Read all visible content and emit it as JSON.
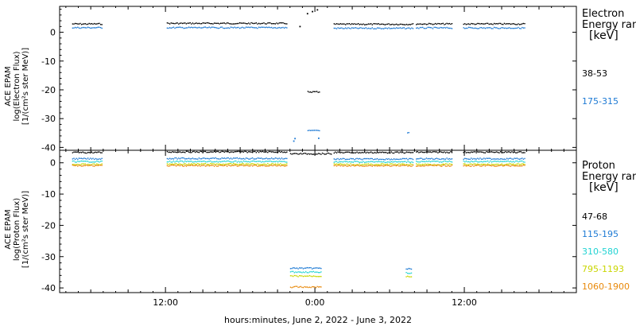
{
  "chart_data": [
    {
      "type": "scatter",
      "ylabel": [
        "ACE EPAM",
        "log(Electron Flux)",
        "[1/(cm²s ster MeV)]"
      ],
      "yticks": [
        0,
        -10,
        -20,
        -30,
        -40
      ],
      "ylim": [
        -41,
        9
      ],
      "legend_title": [
        "Electron",
        "Energy ran",
        "[keV]"
      ],
      "series": [
        {
          "name": "38-53",
          "color": "#000000",
          "segments": [
            {
              "x": [
                -19.5,
                -17.1
              ],
              "y": 2.8
            },
            {
              "x": [
                -11.9,
                -2.2
              ],
              "y": 3.0
            },
            {
              "x": [
                1.5,
                7.9
              ],
              "y": 2.7
            },
            {
              "x": [
                8.1,
                11.0
              ],
              "y": 2.8
            },
            {
              "x": [
                11.9,
                16.9
              ],
              "y": 2.8
            },
            {
              "x": [
                -0.6,
                0.4
              ],
              "y": -20.8
            }
          ],
          "points": [
            {
              "x": -0.6,
              "y": 6.5
            },
            {
              "x": -0.2,
              "y": 7.2
            },
            {
              "x": 0.2,
              "y": 7.8
            },
            {
              "x": -1.2,
              "y": 2.0
            }
          ]
        },
        {
          "name": "175-315",
          "color": "#1e7ad4",
          "segments": [
            {
              "x": [
                -19.5,
                -17.1
              ],
              "y": 1.5
            },
            {
              "x": [
                -11.9,
                -2.2
              ],
              "y": 1.5
            },
            {
              "x": [
                1.5,
                7.9
              ],
              "y": 1.3
            },
            {
              "x": [
                8.1,
                11.0
              ],
              "y": 1.4
            },
            {
              "x": [
                11.9,
                16.9
              ],
              "y": 1.4
            },
            {
              "x": [
                -0.6,
                0.4
              ],
              "y": -34.3
            },
            {
              "x": [
                7.4,
                7.6
              ],
              "y": -35.1
            }
          ],
          "points": [
            {
              "x": -1.7,
              "y": -37.8
            },
            {
              "x": -1.6,
              "y": -36.9
            },
            {
              "x": 0.3,
              "y": -36.8
            }
          ]
        }
      ]
    },
    {
      "type": "scatter",
      "ylabel": [
        "ACE EPAM",
        "log(Proton Flux)",
        "[1/(cm²s ster MeV)]"
      ],
      "yticks": [
        0,
        -10,
        -20,
        -30,
        -40
      ],
      "ylim": [
        -41.5,
        4
      ],
      "legend_title": [
        "Proton",
        "Energy ran",
        "[keV]"
      ],
      "series": [
        {
          "name": "47-68",
          "color": "#000000",
          "segments": [
            {
              "x": [
                -19.5,
                -17.1
              ],
              "y": 3.2
            },
            {
              "x": [
                -11.9,
                -2.2
              ],
              "y": 3.4
            },
            {
              "x": [
                1.5,
                7.9
              ],
              "y": 3.2
            },
            {
              "x": [
                8.1,
                11.0
              ],
              "y": 3.3
            },
            {
              "x": [
                11.9,
                16.9
              ],
              "y": 3.3
            },
            {
              "x": [
                -2.0,
                1.3
              ],
              "y": 2.8
            }
          ],
          "points": []
        },
        {
          "name": "115-195",
          "color": "#1e7ad4",
          "segments": [
            {
              "x": [
                -19.5,
                -17.1
              ],
              "y": 1.2
            },
            {
              "x": [
                -11.9,
                -2.2
              ],
              "y": 1.3
            },
            {
              "x": [
                1.5,
                7.9
              ],
              "y": 1.1
            },
            {
              "x": [
                8.1,
                11.0
              ],
              "y": 1.2
            },
            {
              "x": [
                11.9,
                16.9
              ],
              "y": 1.2
            },
            {
              "x": [
                -2.0,
                0.5
              ],
              "y": -33.8
            },
            {
              "x": [
                7.3,
                7.8
              ],
              "y": -34.0
            }
          ],
          "points": []
        },
        {
          "name": "310-580",
          "color": "#22d3d3",
          "segments": [
            {
              "x": [
                -19.5,
                -17.1
              ],
              "y": 0.3
            },
            {
              "x": [
                -11.9,
                -2.2
              ],
              "y": 0.3
            },
            {
              "x": [
                1.5,
                7.9
              ],
              "y": 0.2
            },
            {
              "x": [
                8.1,
                11.0
              ],
              "y": 0.3
            },
            {
              "x": [
                11.9,
                16.9
              ],
              "y": 0.3
            },
            {
              "x": [
                -2.0,
                0.5
              ],
              "y": -35.0
            },
            {
              "x": [
                7.3,
                7.8
              ],
              "y": -35.3
            }
          ],
          "points": []
        },
        {
          "name": "795-1193",
          "color": "#c9d600",
          "segments": [
            {
              "x": [
                -19.5,
                -17.1
              ],
              "y": -0.6
            },
            {
              "x": [
                -11.9,
                -2.2
              ],
              "y": -0.5
            },
            {
              "x": [
                1.5,
                7.9
              ],
              "y": -0.6
            },
            {
              "x": [
                8.1,
                11.0
              ],
              "y": -0.6
            },
            {
              "x": [
                11.9,
                16.9
              ],
              "y": -0.6
            },
            {
              "x": [
                -2.0,
                0.5
              ],
              "y": -36.3
            },
            {
              "x": [
                7.3,
                7.8
              ],
              "y": -36.4
            }
          ],
          "points": []
        },
        {
          "name": "1060-1900",
          "color": "#e8890a",
          "segments": [
            {
              "x": [
                -19.5,
                -17.1
              ],
              "y": -1.0
            },
            {
              "x": [
                -11.9,
                -2.2
              ],
              "y": -1.0
            },
            {
              "x": [
                1.5,
                7.9
              ],
              "y": -1.0
            },
            {
              "x": [
                8.1,
                11.0
              ],
              "y": -1.0
            },
            {
              "x": [
                11.9,
                16.9
              ],
              "y": -1.0
            },
            {
              "x": [
                -2.0,
                0.5
              ],
              "y": -39.8
            }
          ],
          "points": []
        }
      ]
    }
  ],
  "xaxis": {
    "label": "hours:minutes, June  2, 2022 - June  3, 2022",
    "range_hours_from_midnight_june3": [
      -20.5,
      21.0
    ],
    "ticks": [
      {
        "value": -12,
        "label": "12:00"
      },
      {
        "value": 0,
        "label": "0:00"
      },
      {
        "value": 12,
        "label": "12:00"
      }
    ]
  }
}
